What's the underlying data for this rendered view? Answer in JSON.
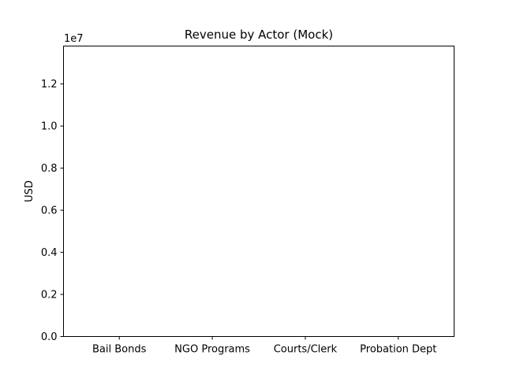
{
  "chart_data": {
    "type": "bar",
    "title": "Revenue by Actor (Mock)",
    "xlabel": "",
    "ylabel": "USD",
    "y_offset_text": "1e7",
    "categories": [
      "Bail Bonds",
      "NGO Programs",
      "Courts/Clerk",
      "Probation Dept"
    ],
    "values": [
      0,
      0,
      0,
      0
    ],
    "ylim": [
      0,
      13800000
    ],
    "yticks": [
      0,
      2000000,
      4000000,
      6000000,
      8000000,
      10000000,
      12000000
    ],
    "ytick_labels": [
      "0.0",
      "0.2",
      "0.4",
      "0.6",
      "0.8",
      "1.0",
      "1.2"
    ],
    "grid": false,
    "legend": false,
    "colors": {
      "bar": "#1f77b4",
      "axis": "#000000",
      "background": "#ffffff"
    }
  }
}
